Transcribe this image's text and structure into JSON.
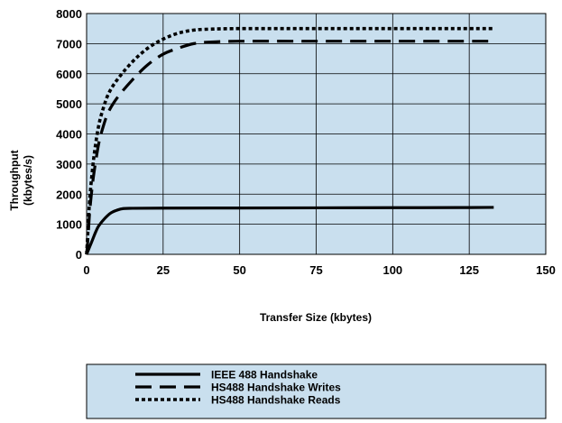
{
  "chart_data": {
    "type": "line",
    "title": "",
    "xlabel": "Transfer Size (kbytes)",
    "ylabel": [
      "Throughput",
      "(kbytes/s)"
    ],
    "xlim": [
      0,
      150
    ],
    "ylim": [
      0,
      8000
    ],
    "x_ticks": [
      "0",
      "25",
      "50",
      "75",
      "100",
      "125",
      "150"
    ],
    "y_ticks": [
      "0",
      "1000",
      "2000",
      "3000",
      "4000",
      "5000",
      "6000",
      "7000",
      "8000"
    ],
    "grid": true,
    "background_color": "#c9dfee",
    "line_color": "#000000",
    "legend_position": "bottom",
    "series": [
      {
        "name": "IEEE 488 Handshake",
        "style": "solid",
        "x": [
          0,
          1,
          2,
          3,
          4,
          6,
          8,
          10,
          12,
          15,
          25,
          50,
          75,
          100,
          125,
          133
        ],
        "y": [
          0,
          250,
          500,
          750,
          950,
          1200,
          1380,
          1470,
          1520,
          1530,
          1535,
          1540,
          1545,
          1550,
          1555,
          1560
        ]
      },
      {
        "name": "HS488 Handshake Writes",
        "style": "dashed",
        "x": [
          0,
          0.5,
          1,
          2,
          3,
          4,
          5,
          7,
          10,
          15,
          20,
          25,
          30,
          35,
          40,
          50,
          75,
          100,
          125,
          133
        ],
        "y": [
          0,
          600,
          1400,
          2400,
          3100,
          3700,
          4100,
          4700,
          5200,
          5800,
          6300,
          6650,
          6850,
          7000,
          7050,
          7080,
          7080,
          7080,
          7080,
          7080
        ]
      },
      {
        "name": "HS488 Handshake Reads",
        "style": "dotted",
        "x": [
          0,
          0.5,
          1,
          2,
          3,
          4,
          5,
          7,
          10,
          15,
          20,
          25,
          30,
          35,
          40,
          50,
          75,
          100,
          125,
          133
        ],
        "y": [
          0,
          900,
          1800,
          2900,
          3700,
          4300,
          4700,
          5300,
          5800,
          6400,
          6850,
          7150,
          7350,
          7450,
          7480,
          7500,
          7500,
          7500,
          7500,
          7500
        ]
      }
    ]
  }
}
